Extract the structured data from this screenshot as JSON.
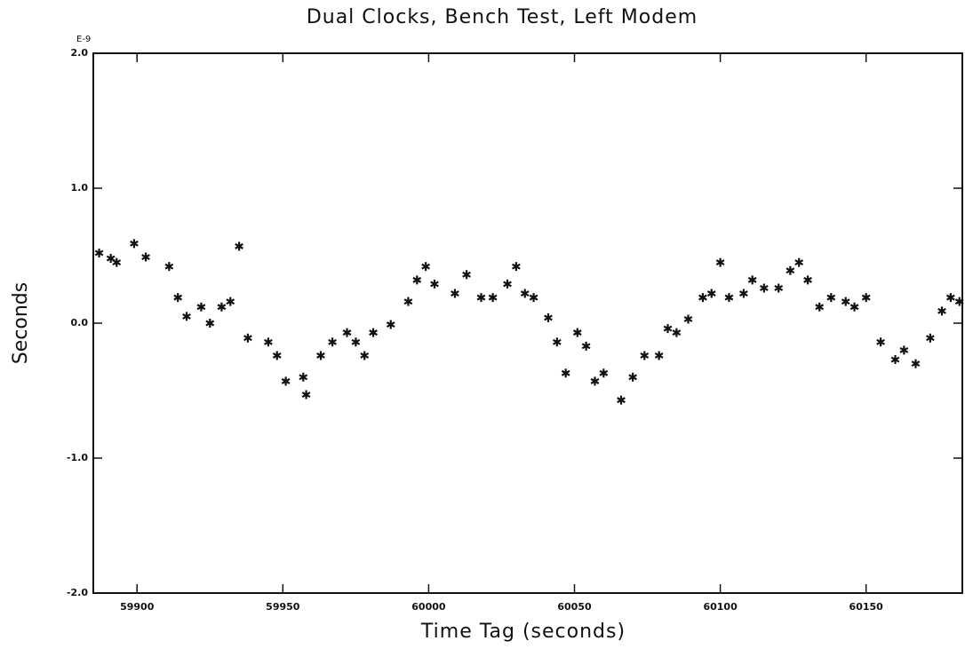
{
  "chart_data": {
    "type": "scatter",
    "title": "Dual Clocks, Bench Test, Left Modem",
    "xlabel": "Time Tag (seconds)",
    "ylabel": "Seconds",
    "y_exponent": "E-9",
    "color": "#111111",
    "xlim": [
      59885,
      60183
    ],
    "ylim": [
      -2,
      2
    ],
    "xticks": [
      59900,
      59950,
      60000,
      60050,
      60100,
      60150
    ],
    "yticks": [
      {
        "value": -2,
        "label": "-2.0"
      },
      {
        "value": -1,
        "label": "-1.0"
      },
      {
        "value": 0,
        "label": "0.0"
      },
      {
        "value": 1,
        "label": "1.0"
      },
      {
        "value": 2,
        "label": "2.0"
      }
    ],
    "x": [
      59887,
      59891,
      59893,
      59899,
      59903,
      59911,
      59914,
      59917,
      59922,
      59925,
      59929,
      59932,
      59935,
      59938,
      59945,
      59948,
      59951,
      59957,
      59958,
      59963,
      59967,
      59972,
      59975,
      59978,
      59981,
      59987,
      59993,
      59996,
      59999,
      60002,
      60009,
      60013,
      60018,
      60022,
      60027,
      60030,
      60033,
      60036,
      60041,
      60044,
      60047,
      60051,
      60054,
      60057,
      60060,
      60066,
      60070,
      60074,
      60079,
      60082,
      60085,
      60089,
      60094,
      60097,
      60100,
      60103,
      60108,
      60111,
      60115,
      60120,
      60124,
      60127,
      60130,
      60134,
      60138,
      60143,
      60146,
      60150,
      60155,
      60160,
      60163,
      60167,
      60172,
      60176,
      60179,
      60182
    ],
    "values": [
      0.52,
      0.48,
      0.45,
      0.59,
      0.49,
      0.42,
      0.19,
      0.05,
      0.12,
      0.0,
      0.12,
      0.16,
      0.57,
      -0.11,
      -0.14,
      -0.24,
      -0.43,
      -0.4,
      -0.53,
      -0.24,
      -0.14,
      -0.07,
      -0.14,
      -0.24,
      -0.07,
      -0.01,
      0.16,
      0.32,
      0.42,
      0.29,
      0.22,
      0.36,
      0.19,
      0.19,
      0.29,
      0.42,
      0.22,
      0.19,
      0.04,
      -0.14,
      -0.37,
      -0.07,
      -0.17,
      -0.43,
      -0.37,
      -0.57,
      -0.4,
      -0.24,
      -0.24,
      -0.04,
      -0.07,
      0.03,
      0.19,
      0.22,
      0.45,
      0.19,
      0.22,
      0.32,
      0.26,
      0.26,
      0.39,
      0.45,
      0.32,
      0.12,
      0.19,
      0.16,
      0.12,
      0.19,
      -0.14,
      -0.27,
      -0.2,
      -0.3,
      -0.11,
      0.09,
      0.19,
      0.16
    ]
  }
}
